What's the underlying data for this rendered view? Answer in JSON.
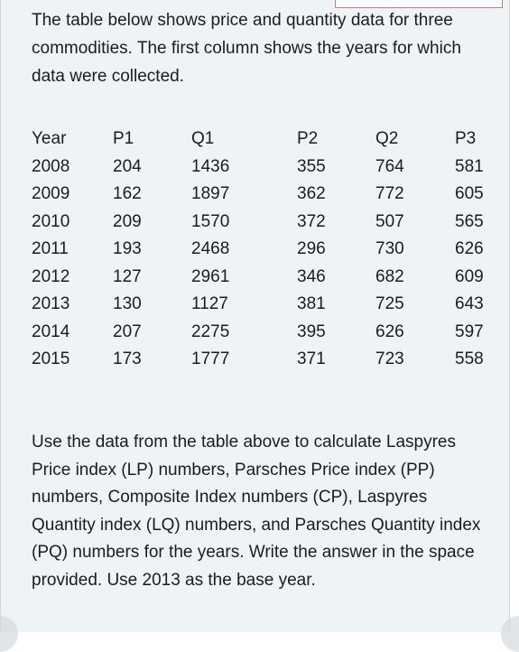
{
  "intro_text": "The table below shows price and quantity data for three commodities. The first column shows the years for which data were collected.",
  "table": {
    "headers": [
      "Year",
      "P1",
      "Q1",
      "P2",
      "Q2",
      "P3"
    ],
    "rows": [
      [
        "2008",
        "204",
        "1436",
        "355",
        "764",
        "581"
      ],
      [
        "2009",
        "162",
        "1897",
        "362",
        "772",
        "605"
      ],
      [
        "2010",
        "209",
        "1570",
        "372",
        "507",
        "565"
      ],
      [
        "2011",
        "193",
        "2468",
        "296",
        "730",
        "626"
      ],
      [
        "2012",
        "127",
        "2961",
        "346",
        "682",
        "609"
      ],
      [
        "2013",
        "130",
        "1127",
        "381",
        "725",
        "643"
      ],
      [
        "2014",
        "207",
        "2275",
        "395",
        "626",
        "597"
      ],
      [
        "2015",
        "173",
        "1777",
        "371",
        "723",
        "558"
      ]
    ]
  },
  "question_text": "Use the data from the table above to calculate Laspyres Price index (LP) numbers, Parsches Price index (PP) numbers, Composite Index numbers (CP), Laspyres Quantity index (LQ) numbers, and Parsches Quantity index (PQ) numbers for the years. Write the answer in the space provided. Use  2013 as the base year."
}
